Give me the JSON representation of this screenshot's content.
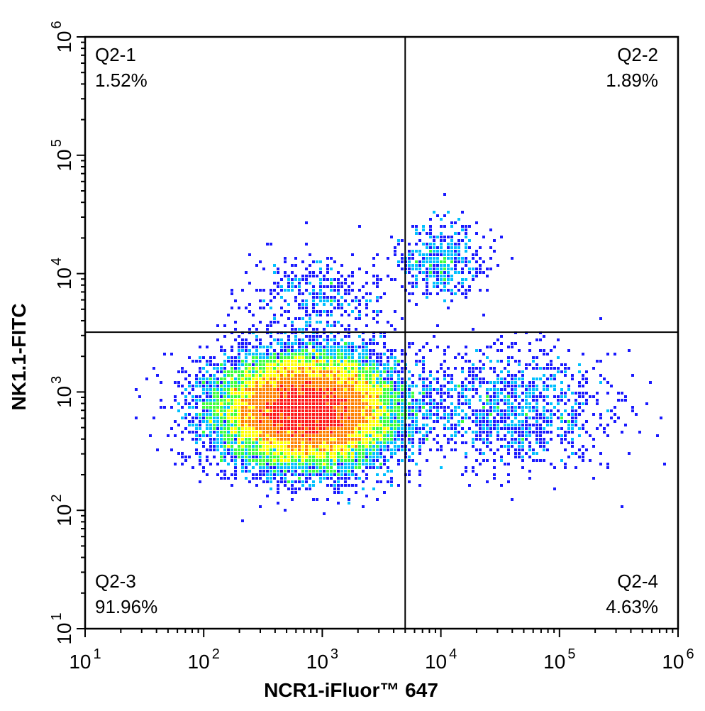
{
  "chart_data": {
    "type": "scatter",
    "subtype": "flow-cytometry-density-dot-plot",
    "xlabel": "NCR1-iFluor™ 647",
    "ylabel": "NK1.1-FITC",
    "xscale": "log",
    "yscale": "log",
    "xlim": [
      10,
      1000000
    ],
    "ylim": [
      10,
      1000000
    ],
    "x_ticks": [
      {
        "value": 10,
        "base": "10",
        "exp": "1"
      },
      {
        "value": 100,
        "base": "10",
        "exp": "2"
      },
      {
        "value": 1000,
        "base": "10",
        "exp": "3"
      },
      {
        "value": 10000,
        "base": "10",
        "exp": "4"
      },
      {
        "value": 100000,
        "base": "10",
        "exp": "5"
      },
      {
        "value": 1000000,
        "base": "10",
        "exp": "6"
      }
    ],
    "y_ticks": [
      {
        "value": 10,
        "base": "10",
        "exp": "1"
      },
      {
        "value": 100,
        "base": "10",
        "exp": "2"
      },
      {
        "value": 1000,
        "base": "10",
        "exp": "3"
      },
      {
        "value": 10000,
        "base": "10",
        "exp": "4"
      },
      {
        "value": 100000,
        "base": "10",
        "exp": "5"
      },
      {
        "value": 1000000,
        "base": "10",
        "exp": "6"
      }
    ],
    "gate": {
      "x": 5000,
      "y": 3200
    },
    "quadrants": [
      {
        "name": "Q2-1",
        "percent": "1.52%",
        "position": "top-left"
      },
      {
        "name": "Q2-2",
        "percent": "1.89%",
        "position": "top-right"
      },
      {
        "name": "Q2-3",
        "percent": "91.96%",
        "position": "bottom-left"
      },
      {
        "name": "Q2-4",
        "percent": "4.63%",
        "position": "bottom-right"
      }
    ],
    "populations": [
      {
        "center": [
          750,
          700
        ],
        "spread_log": [
          0.35,
          0.22
        ],
        "share": 0.9196
      },
      {
        "center": [
          10000,
          12000
        ],
        "spread_log": [
          0.18,
          0.16
        ],
        "share": 0.0189
      },
      {
        "center": [
          40000,
          700
        ],
        "spread_log": [
          0.45,
          0.25
        ],
        "share": 0.0463
      },
      {
        "center": [
          900,
          6000
        ],
        "spread_log": [
          0.3,
          0.2
        ],
        "share": 0.0152
      }
    ],
    "density_colors": [
      "#1a1aff",
      "#00c0ff",
      "#3cff3c",
      "#ffff00",
      "#ff8000",
      "#ff1a1a"
    ],
    "grid": false,
    "legend": "none"
  }
}
